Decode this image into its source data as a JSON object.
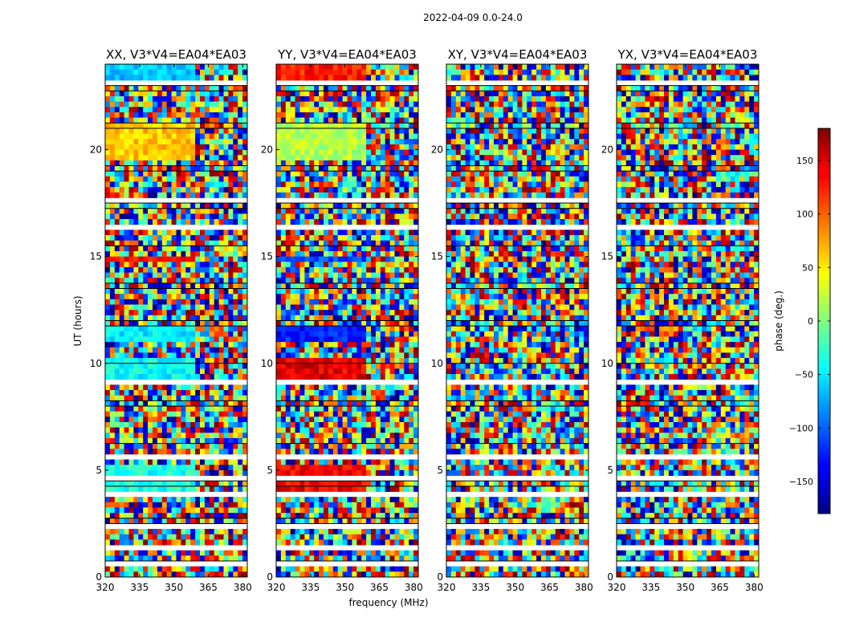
{
  "chart_data": {
    "type": "heatmap",
    "suptitle": "2022-04-09 0.0-24.0",
    "xlabel": "frequency (MHz)",
    "ylabel": "UT (hours)",
    "xlim": [
      320,
      382
    ],
    "ylim": [
      0,
      24
    ],
    "xticks": [
      320,
      335,
      350,
      365,
      380
    ],
    "yticks": [
      0,
      5,
      10,
      15,
      20
    ],
    "panels": [
      {
        "title": "XX, V3*V4=EA04*EA03",
        "pol": "XX",
        "structured": true
      },
      {
        "title": "YY, V3*V4=EA04*EA03",
        "pol": "YY",
        "structured": true
      },
      {
        "title": "XY, V3*V4=EA04*EA03",
        "pol": "XY",
        "structured": false
      },
      {
        "title": "YX, V3*V4=EA04*EA03",
        "pol": "YX",
        "structured": false
      }
    ],
    "colorbar": {
      "label": "phase (deg.)",
      "range": [
        -180,
        180
      ],
      "ticks": [
        150,
        100,
        50,
        0,
        -50,
        -100,
        -150
      ],
      "colormap": "jet"
    },
    "flagged_time_ranges_hours": [
      [
        0.55,
        0.65
      ],
      [
        1.35,
        1.45
      ],
      [
        2.35,
        2.55
      ],
      [
        3.85,
        3.95
      ],
      [
        4.55,
        4.65
      ],
      [
        5.55,
        5.65
      ],
      [
        9.05,
        9.2
      ],
      [
        9.75,
        9.85
      ],
      [
        11.9,
        12.0
      ],
      [
        12.95,
        13.05
      ],
      [
        16.35,
        16.45
      ],
      [
        17.55,
        17.7
      ],
      [
        18.4,
        18.5
      ],
      [
        22.9,
        23.15
      ]
    ]
  }
}
